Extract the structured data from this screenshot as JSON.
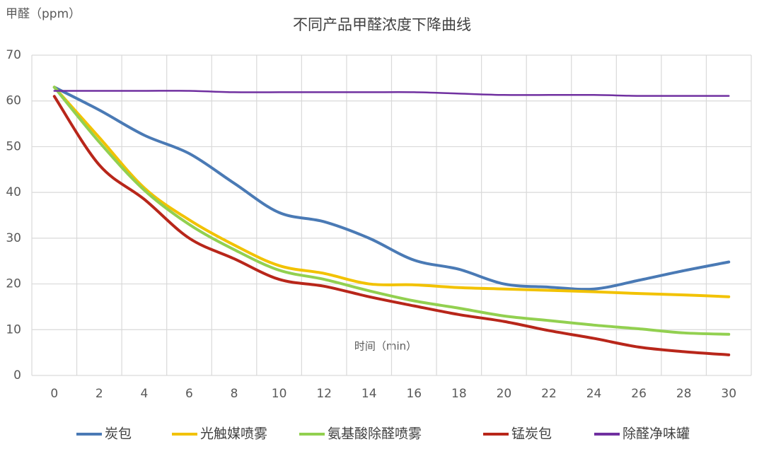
{
  "chart_data": {
    "type": "line",
    "title": "不同产品甲醛浓度下降曲线",
    "y_label": "甲醛（ppm）",
    "x_label": "时间（min）",
    "categories": [
      "0",
      "2",
      "4",
      "6",
      "8",
      "10",
      "12",
      "14",
      "16",
      "18",
      "20",
      "22",
      "24",
      "26",
      "28",
      "30"
    ],
    "ylim": [
      0,
      70
    ],
    "yticks": [
      0,
      10,
      20,
      30,
      40,
      50,
      60,
      70
    ],
    "grid": true,
    "legend": "bottom",
    "series": [
      {
        "name": "炭包",
        "color": "#4a7ab5",
        "values": [
          63,
          58,
          52.5,
          48.5,
          42,
          35.6,
          33.6,
          30,
          25.2,
          23.2,
          20,
          19.3,
          18.9,
          20.8,
          22.9,
          24.8
        ]
      },
      {
        "name": "光触媒喷雾",
        "color": "#f2c200",
        "values": [
          63,
          52,
          41,
          34,
          28.5,
          24,
          22.3,
          20,
          19.8,
          19.2,
          18.9,
          18.6,
          18.3,
          17.9,
          17.6,
          17.2
        ]
      },
      {
        "name": "氨基酸除醛喷雾",
        "color": "#92d050",
        "values": [
          63,
          51,
          40.5,
          33,
          27.5,
          23,
          21,
          18.5,
          16.3,
          14.7,
          13,
          12,
          11,
          10.2,
          9.3,
          9
        ]
      },
      {
        "name": "锰炭包",
        "color": "#b8261a",
        "values": [
          61,
          46,
          38.5,
          30,
          25.5,
          21,
          19.5,
          17.2,
          15.2,
          13.3,
          11.8,
          9.8,
          8.1,
          6.2,
          5.2,
          4.5
        ]
      },
      {
        "name": "除醛净味罐",
        "color": "#7030a0",
        "values": [
          62.2,
          62.2,
          62.2,
          62.2,
          61.9,
          61.9,
          61.9,
          61.9,
          61.9,
          61.6,
          61.3,
          61.3,
          61.3,
          61.1,
          61.1,
          61.1
        ]
      }
    ]
  }
}
